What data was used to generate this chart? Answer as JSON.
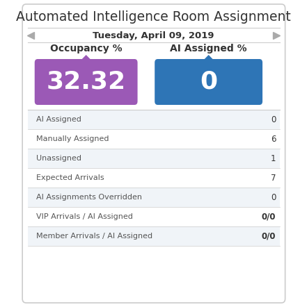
{
  "title": "Automated Intelligence Room Assignment",
  "date": "Tuesday, April 09, 2019",
  "occupancy_label": "Occupancy %",
  "occupancy_value": "32.32",
  "ai_label": "AI Assigned %",
  "ai_value": "0",
  "occupancy_color": "#9b59b6",
  "ai_color": "#2e75b6",
  "rows": [
    {
      "label": "AI Assigned",
      "value": "0"
    },
    {
      "label": "Manually Assigned",
      "value": "6"
    },
    {
      "label": "Unassigned",
      "value": "1"
    },
    {
      "label": "Expected Arrivals",
      "value": "7"
    },
    {
      "label": "AI Assignments Overridden",
      "value": "0"
    },
    {
      "label": "VIP Arrivals / AI Assigned",
      "value": "0/0"
    },
    {
      "label": "Member Arrivals / AI Assigned",
      "value": "0/0"
    }
  ],
  "bg_color": "#ffffff",
  "border_color": "#cccccc",
  "row_odd_bg": "#f0f4f8",
  "row_even_bg": "#ffffff",
  "label_color": "#555555",
  "value_color": "#333333",
  "title_color": "#333333",
  "date_color": "#333333",
  "separator_color": "#cccccc",
  "arrow_color": "#aaaaaa"
}
